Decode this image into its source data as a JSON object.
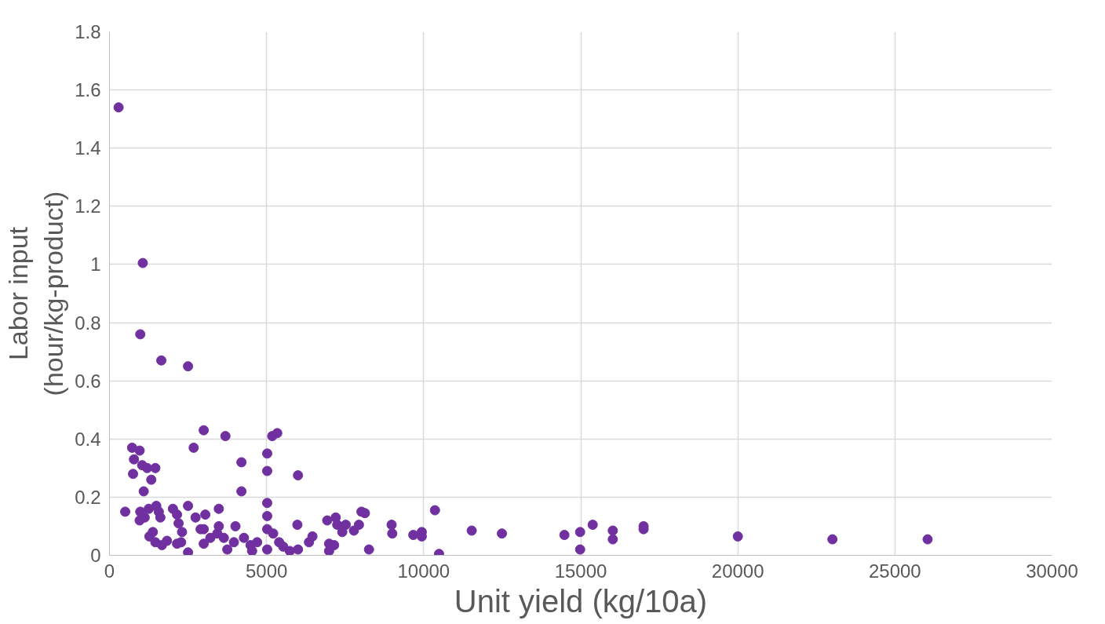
{
  "chart_data": {
    "type": "scatter",
    "xlabel": "Unit yield (kg/10a)",
    "ylabel": "Labor input\n(hour/kg-product)",
    "xlim": [
      0,
      30000
    ],
    "xticks": [
      0,
      5000,
      10000,
      15000,
      20000,
      25000,
      30000
    ],
    "ylim": [
      0,
      1.8
    ],
    "yticks": [
      0,
      {
        "value": 0.2,
        "label": "0.2"
      },
      {
        "value": 0.4,
        "label": "0.4"
      },
      {
        "value": 0.6,
        "label": "0.6"
      },
      {
        "value": 0.8,
        "label": "0.8"
      },
      1,
      {
        "value": 1.2,
        "label": "1.2"
      },
      {
        "value": 1.4,
        "label": "1.4"
      },
      {
        "value": 1.6,
        "label": "1.6"
      },
      {
        "value": 1.8,
        "label": "1.8"
      }
    ],
    "grid": true,
    "marker": "circle",
    "series": [
      {
        "color": "#7030a0",
        "x": [
          290,
          1060,
          980,
          1650,
          2500,
          500,
          720,
          780,
          960,
          750,
          1040,
          1200,
          1090,
          1330,
          1460,
          980,
          960,
          1120,
          1250,
          1380,
          1270,
          1490,
          1570,
          1620,
          1460,
          1670,
          1830,
          2020,
          2150,
          2200,
          2310,
          2150,
          2280,
          2500,
          2500,
          2680,
          3000,
          2740,
          2900,
          3000,
          3050,
          3000,
          3210,
          3430,
          3480,
          3690,
          3480,
          3640,
          3750,
          3960,
          4010,
          4200,
          4200,
          4280,
          4540,
          4490,
          4700,
          5020,
          5020,
          5020,
          5020,
          5020,
          5020,
          5180,
          5340,
          5210,
          5400,
          5530,
          5740,
          6000,
          5980,
          6000,
          6350,
          6460,
          6930,
          6990,
          6990,
          7150,
          7200,
          7250,
          7410,
          7520,
          7780,
          7940,
          8020,
          8130,
          8260,
          8980,
          9000,
          9670,
          9940,
          9940,
          10360,
          10490,
          11530,
          12490,
          14480,
          14980,
          14980,
          15380,
          16020,
          16020,
          17000,
          17000,
          20000,
          23010,
          26040
        ],
        "values": [
          1.54,
          1.005,
          0.76,
          0.67,
          0.65,
          0.15,
          0.37,
          0.33,
          0.36,
          0.28,
          0.31,
          0.3,
          0.22,
          0.26,
          0.3,
          0.15,
          0.12,
          0.13,
          0.16,
          0.08,
          0.065,
          0.17,
          0.15,
          0.13,
          0.045,
          0.035,
          0.05,
          0.16,
          0.14,
          0.11,
          0.08,
          0.04,
          0.045,
          0.01,
          0.17,
          0.37,
          0.43,
          0.13,
          0.09,
          0.09,
          0.14,
          0.04,
          0.06,
          0.075,
          0.16,
          0.41,
          0.1,
          0.06,
          0.02,
          0.045,
          0.1,
          0.32,
          0.22,
          0.06,
          0.015,
          0.035,
          0.045,
          0.09,
          0.18,
          0.29,
          0.35,
          0.135,
          0.02,
          0.41,
          0.42,
          0.075,
          0.045,
          0.03,
          0.015,
          0.275,
          0.105,
          0.02,
          0.045,
          0.065,
          0.12,
          0.04,
          0.015,
          0.035,
          0.13,
          0.105,
          0.08,
          0.105,
          0.085,
          0.105,
          0.15,
          0.145,
          0.02,
          0.105,
          0.075,
          0.07,
          0.08,
          0.065,
          0.155,
          0.005,
          0.085,
          0.075,
          0.07,
          0.08,
          0.02,
          0.105,
          0.085,
          0.055,
          0.1,
          0.09,
          0.065,
          0.055,
          0.055
        ]
      }
    ]
  }
}
